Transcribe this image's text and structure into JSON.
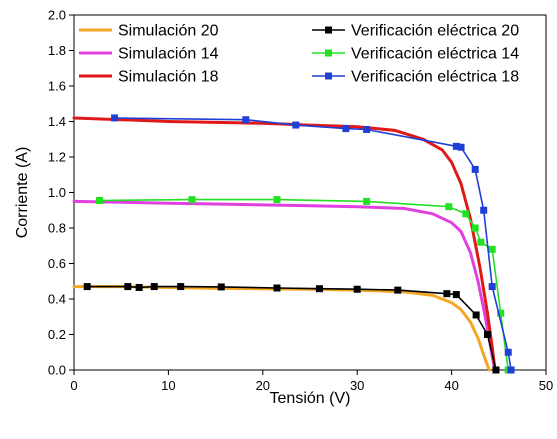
{
  "chart_data": {
    "type": "line",
    "title": "",
    "xlabel": "Tensión (V)",
    "ylabel": "Corriente (A)",
    "xlim": [
      0,
      50
    ],
    "ylim": [
      0,
      2.0
    ],
    "x_ticks": [
      0,
      10,
      20,
      30,
      40,
      50
    ],
    "y_ticks": [
      0.0,
      0.2,
      0.4,
      0.6,
      0.8,
      1.0,
      1.2,
      1.4,
      1.6,
      1.8,
      2.0
    ],
    "x_tick_labels": [
      "0",
      "10",
      "20",
      "30",
      "40",
      "50"
    ],
    "y_tick_labels": [
      "0.0",
      "0.2",
      "0.4",
      "0.6",
      "0.8",
      "1.0",
      "1.2",
      "1.4",
      "1.6",
      "1.8",
      "2.0"
    ],
    "grid": false,
    "legend_placement": "top",
    "series": [
      {
        "name": "Simulación 20",
        "color": "#f5a623",
        "marker": "none",
        "points": [
          [
            0,
            0.47
          ],
          [
            5,
            0.47
          ],
          [
            10,
            0.465
          ],
          [
            15,
            0.46
          ],
          [
            20,
            0.458
          ],
          [
            25,
            0.455
          ],
          [
            30,
            0.45
          ],
          [
            35,
            0.44
          ],
          [
            38,
            0.42
          ],
          [
            40,
            0.38
          ],
          [
            41,
            0.34
          ],
          [
            42,
            0.27
          ],
          [
            42.8,
            0.18
          ],
          [
            43.3,
            0.1
          ],
          [
            43.7,
            0.04
          ],
          [
            44,
            0.0
          ]
        ]
      },
      {
        "name": "Simulación 14",
        "color": "#e040e0",
        "marker": "none",
        "points": [
          [
            0,
            0.95
          ],
          [
            5,
            0.945
          ],
          [
            10,
            0.94
          ],
          [
            15,
            0.935
          ],
          [
            20,
            0.93
          ],
          [
            25,
            0.925
          ],
          [
            30,
            0.92
          ],
          [
            35,
            0.91
          ],
          [
            38,
            0.88
          ],
          [
            40,
            0.83
          ],
          [
            41,
            0.78
          ],
          [
            42,
            0.66
          ],
          [
            42.8,
            0.5
          ],
          [
            43.5,
            0.32
          ],
          [
            44,
            0.17
          ],
          [
            44.4,
            0.05
          ],
          [
            44.6,
            0.0
          ]
        ]
      },
      {
        "name": "Simulación 18",
        "color": "#e01818",
        "marker": "none",
        "points": [
          [
            0,
            1.42
          ],
          [
            5,
            1.41
          ],
          [
            10,
            1.4
          ],
          [
            15,
            1.395
          ],
          [
            20,
            1.39
          ],
          [
            25,
            1.38
          ],
          [
            30,
            1.37
          ],
          [
            34,
            1.35
          ],
          [
            37,
            1.3
          ],
          [
            39,
            1.24
          ],
          [
            40,
            1.17
          ],
          [
            41,
            1.05
          ],
          [
            42,
            0.85
          ],
          [
            43,
            0.58
          ],
          [
            43.8,
            0.32
          ],
          [
            44.3,
            0.13
          ],
          [
            44.6,
            0.0
          ]
        ]
      },
      {
        "name": "Verificación eléctrica 20",
        "color": "#000000",
        "marker": "square",
        "points": [
          [
            1.4,
            0.47
          ],
          [
            5.7,
            0.47
          ],
          [
            6.9,
            0.465
          ],
          [
            8.5,
            0.47
          ],
          [
            11.3,
            0.47
          ],
          [
            15.6,
            0.468
          ],
          [
            21.5,
            0.462
          ],
          [
            26,
            0.458
          ],
          [
            30,
            0.455
          ],
          [
            34.3,
            0.45
          ],
          [
            39.5,
            0.43
          ],
          [
            40.5,
            0.425
          ],
          [
            42.6,
            0.31
          ],
          [
            43.8,
            0.2
          ],
          [
            44.7,
            0.0
          ]
        ]
      },
      {
        "name": "Verificación eléctrica 14",
        "color": "#22e022",
        "marker": "square",
        "points": [
          [
            2.7,
            0.955
          ],
          [
            12.5,
            0.96
          ],
          [
            21.5,
            0.96
          ],
          [
            31,
            0.95
          ],
          [
            39.7,
            0.92
          ],
          [
            41.5,
            0.88
          ],
          [
            42.5,
            0.8
          ],
          [
            43.1,
            0.72
          ],
          [
            44.3,
            0.68
          ],
          [
            45.2,
            0.32
          ],
          [
            46,
            0.0
          ]
        ]
      },
      {
        "name": "Verificación eléctrica 18",
        "color": "#1f3fd6",
        "marker": "square",
        "points": [
          [
            4.3,
            1.42
          ],
          [
            18.2,
            1.41
          ],
          [
            23.5,
            1.38
          ],
          [
            28.8,
            1.36
          ],
          [
            31,
            1.355
          ],
          [
            40.5,
            1.26
          ],
          [
            41,
            1.255
          ],
          [
            42.5,
            1.13
          ],
          [
            43.4,
            0.9
          ],
          [
            44.3,
            0.47
          ],
          [
            46,
            0.1
          ],
          [
            46.3,
            0.0
          ]
        ]
      }
    ]
  }
}
